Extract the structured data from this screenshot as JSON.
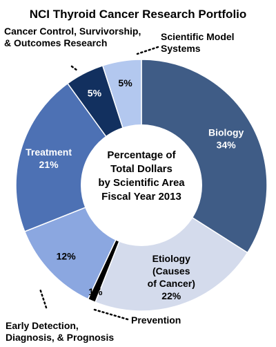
{
  "chart_data": {
    "type": "pie",
    "title": "NCI Thyroid Cancer Research Portfolio",
    "center_label": [
      "Percentage of",
      "Total Dollars",
      "by Scientific Area",
      "Fiscal Year 2013"
    ],
    "slices": [
      {
        "name": "Biology",
        "value": 34,
        "label": "34%",
        "color": "#3f5c86",
        "label_color": "#ffffff",
        "label_inside": true
      },
      {
        "name": "Etiology (Causes of Cancer)",
        "value": 22,
        "label": "22%",
        "color": "#d4dbec",
        "label_color": "#000000",
        "label_inside": true
      },
      {
        "name": "Prevention",
        "value": 1,
        "label": "1%",
        "color": "#000000",
        "label_color": "#000000",
        "label_inside": false
      },
      {
        "name": "Early Detection, Diagnosis, & Prognosis",
        "value": 12,
        "label": "12%",
        "color": "#8ba7e0",
        "label_color": "#000000",
        "label_inside": false
      },
      {
        "name": "Treatment",
        "value": 21,
        "label": "21%",
        "color": "#4d71b4",
        "label_color": "#ffffff",
        "label_inside": true
      },
      {
        "name": "Cancer Control, Survivorship, & Outcomes Research",
        "value": 5,
        "label": "5%",
        "color": "#12305f",
        "label_color": "#ffffff",
        "label_inside": false
      },
      {
        "name": "Scientific Model Systems",
        "value": 5,
        "label": "5%",
        "color": "#b3c8ef",
        "label_color": "#000000",
        "label_inside": false
      }
    ],
    "inside_name_lines": {
      "Biology": [
        "Biology"
      ],
      "Etiology (Causes of Cancer)": [
        "Etiology",
        "(Causes",
        "of Cancer)"
      ],
      "Treatment": [
        "Treatment"
      ]
    },
    "external_labels": {
      "cancer_control": [
        "Cancer Control, Survivorship,",
        "& Outcomes Research"
      ],
      "model_systems": [
        "Scientific Model",
        "Systems"
      ],
      "early_detection": [
        "Early Detection,",
        "Diagnosis, & Prognosis"
      ],
      "prevention": [
        "Prevention"
      ]
    }
  }
}
